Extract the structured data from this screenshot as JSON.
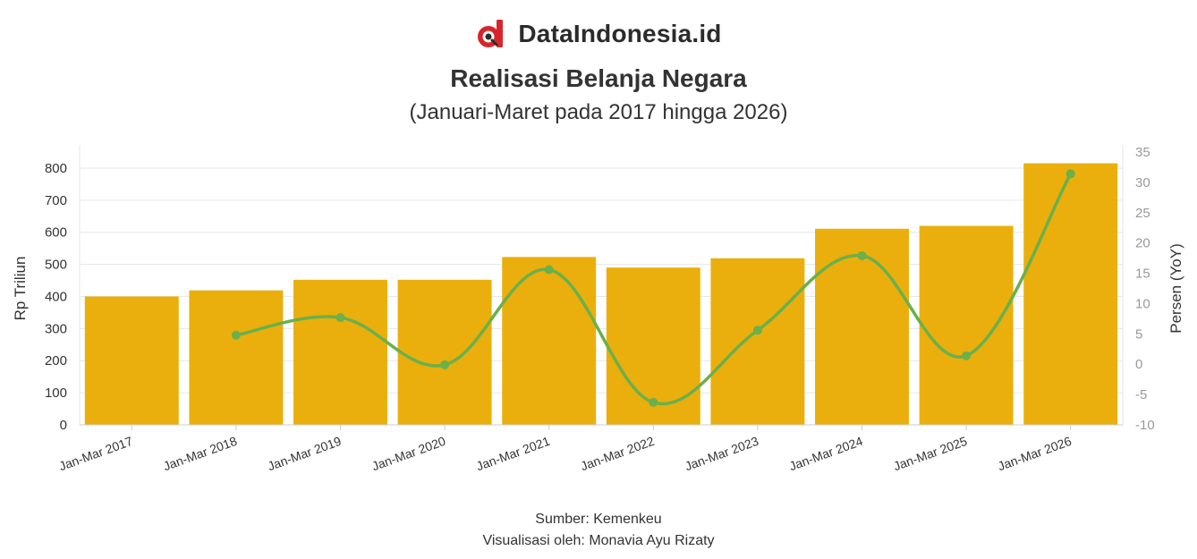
{
  "brand": {
    "name": "DataIndonesia.id",
    "logo_icon": "dataindonesia-logo-icon"
  },
  "colors": {
    "bar": "#EAAF0C",
    "line": "#6AB04C",
    "grid": "#E6E6E6",
    "axis_text": "#333333",
    "right_axis_text": "#999999"
  },
  "footer": {
    "source": "Sumber: Kemenkeu",
    "visualization": "Visualisasi oleh: Monavia Ayu Rizaty"
  },
  "chart_data": {
    "type": "bar",
    "title": "Realisasi Belanja Negara",
    "subtitle": "(Januari-Maret pada 2017 hingga 2026)",
    "categories": [
      "Jan-Mar 2017",
      "Jan-Mar 2018",
      "Jan-Mar 2019",
      "Jan-Mar 2020",
      "Jan-Mar 2021",
      "Jan-Mar 2022",
      "Jan-Mar 2023",
      "Jan-Mar 2024",
      "Jan-Mar 2025",
      "Jan-Mar 2026"
    ],
    "series": [
      {
        "type": "bar",
        "axis": "left",
        "values": [
          400,
          419,
          452,
          452,
          523,
          490,
          519,
          611,
          620,
          815
        ]
      },
      {
        "type": "line",
        "axis": "right",
        "values": [
          null,
          4.8,
          7.7,
          -0.1,
          15.6,
          -6.3,
          5.6,
          17.9,
          1.4,
          31.4
        ]
      }
    ],
    "ylabel_left": "Rp Triliun",
    "ylabel_right": "Persen (YoY)",
    "ylim_left": [
      0,
      850
    ],
    "yticks_left": [
      0,
      100,
      200,
      300,
      400,
      500,
      600,
      700,
      800
    ],
    "ylim_right": [
      -10,
      35
    ],
    "yticks_right": [
      -10,
      -5,
      0,
      5,
      10,
      15,
      20,
      25,
      30,
      35
    ],
    "grid": true,
    "legend": "none"
  }
}
